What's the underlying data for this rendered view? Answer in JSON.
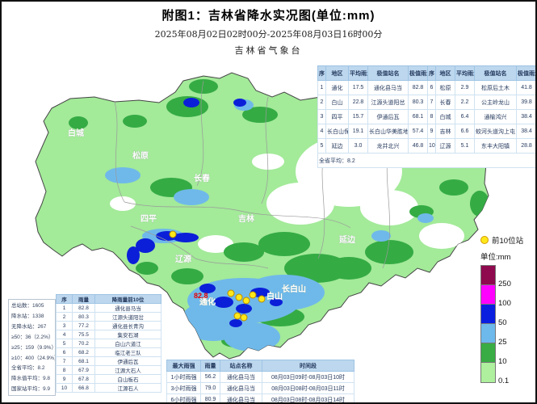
{
  "header": {
    "title": "附图1：吉林省降水实况图(单位:mm)",
    "period": "2025年08月02日02时00分-2025年08月03日16时00分",
    "agency": "吉林省气象台"
  },
  "summary_table": {
    "headers": [
      "序",
      "地区",
      "平均雨量",
      "极值站名",
      "极值雨量",
      "序",
      "地区",
      "平均雨量",
      "极值站名",
      "极值雨量"
    ],
    "rows": [
      [
        "1",
        "通化",
        "17.5",
        "通化县马当",
        "82.8",
        "6",
        "松原",
        "2.9",
        "松原后土木",
        "41.8"
      ],
      [
        "2",
        "白山",
        "22.8",
        "江源头道阳岔",
        "80.3",
        "7",
        "长春",
        "2.2",
        "公主岭龙山",
        "39.8"
      ],
      [
        "3",
        "四平",
        "15.7",
        "伊通后瓦",
        "68.1",
        "8",
        "白城",
        "6.4",
        "通榆鸿兴",
        "38.4"
      ],
      [
        "4",
        "长白山保护开发区",
        "19.1",
        "长白山华美胜地",
        "57.4",
        "9",
        "吉林",
        "6.6",
        "蛟河头道沟上屯",
        "38.4"
      ],
      [
        "5",
        "延边",
        "3.0",
        "龙井北兴",
        "46.8",
        "10",
        "辽源",
        "5.1",
        "东丰大阳镇",
        "28.8"
      ]
    ],
    "footer": "全省平均：8.2"
  },
  "stats_box": {
    "lines": [
      "总站数：1605",
      "降水站：1338",
      "无降水站：267",
      "≥50：36（2.2%）",
      "≥25：159（9.9%）",
      "≥10：400（24.9%）",
      "全省平均：8.2",
      "降水值平均：9.8",
      "国家站平均：9.9"
    ]
  },
  "top10_table": {
    "headers": [
      "序",
      "雨量",
      "降雨量前10位"
    ],
    "rows": [
      [
        "1",
        "82.8",
        "通化县马当"
      ],
      [
        "2",
        "80.3",
        "江源头道阳岔"
      ],
      [
        "3",
        "77.2",
        "通化县长青沟"
      ],
      [
        "4",
        "75.5",
        "集安石湖"
      ],
      [
        "5",
        "70.2",
        "白山六道江"
      ],
      [
        "6",
        "68.2",
        "临江老三队"
      ],
      [
        "7",
        "68.1",
        "伊通后瓦"
      ],
      [
        "8",
        "67.9",
        "江源大石人"
      ],
      [
        "9",
        "67.8",
        "白山板石"
      ],
      [
        "10",
        "66.8",
        "江源石人"
      ]
    ]
  },
  "intensity_table": {
    "headers": [
      "最大雨强",
      "雨量",
      "站点名称",
      "时间段"
    ],
    "rows": [
      [
        "1小时雨强",
        "56.2",
        "通化县马当",
        "08月03日09时-08月03日10时"
      ],
      [
        "3小时雨强",
        "79.0",
        "通化县马当",
        "08月03日08时-08月03日11时"
      ],
      [
        "6小时雨强",
        "80.9",
        "通化县马当",
        "08月03日08时-08月03日14时"
      ]
    ]
  },
  "legend": {
    "top10_label": "前10位站",
    "unit_label": "单位:mm",
    "scale": [
      {
        "label": "250",
        "color": "#8e094e"
      },
      {
        "label": "100",
        "color": "#ff00ff"
      },
      {
        "label": "50",
        "color": "#0a1ee0"
      },
      {
        "label": "25",
        "color": "#6db9ec"
      },
      {
        "label": "10",
        "color": "#39ac44"
      },
      {
        "label": "0.1",
        "color": "#aef09e"
      }
    ]
  },
  "map": {
    "max_value_label": "82.8",
    "labels": [
      {
        "text": "白城"
      },
      {
        "text": "松原"
      },
      {
        "text": "长春"
      },
      {
        "text": "四平"
      },
      {
        "text": "辽源"
      },
      {
        "text": "吉林"
      },
      {
        "text": "延边"
      },
      {
        "text": "长白山"
      },
      {
        "text": "白山"
      },
      {
        "text": "通化"
      }
    ],
    "colors": {
      "base_light_green": "#a3ea99",
      "green_10_25": "#35ab44",
      "blue_25_50": "#6fb9ea",
      "blue_50_100": "#0b1fd9",
      "no_rain_white": "#ffffff",
      "top10_dot_yellow": "#ffe81a",
      "max_label_red": "#e80000"
    }
  }
}
